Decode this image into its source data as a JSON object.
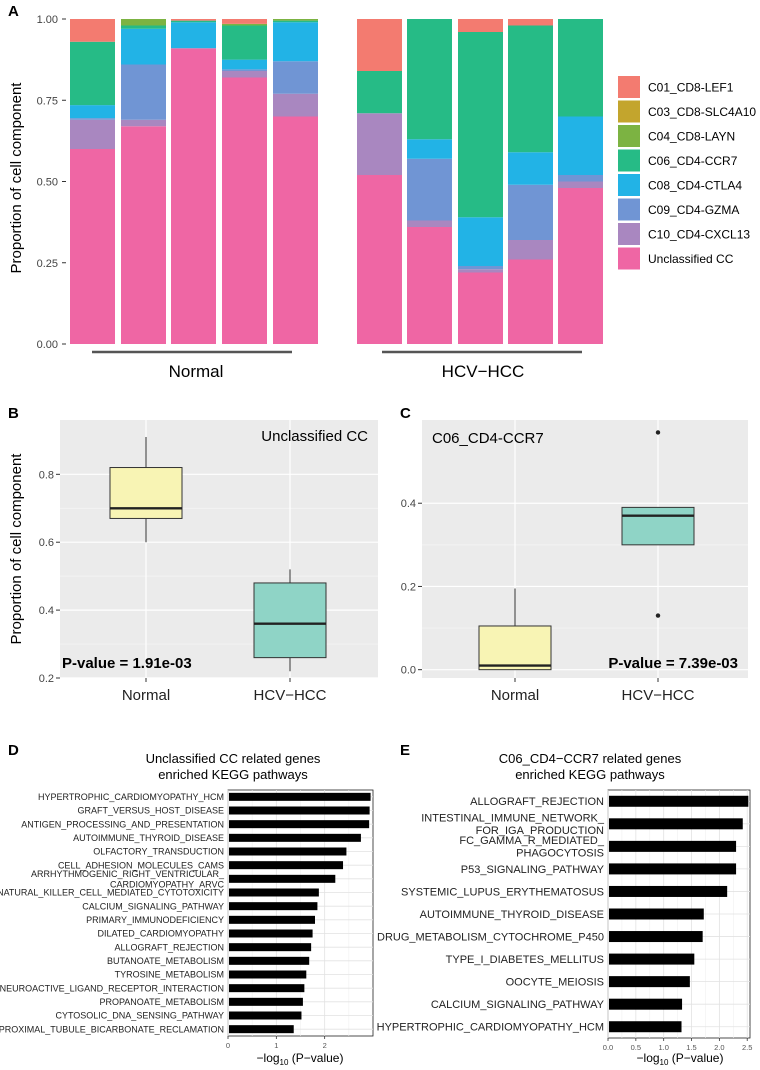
{
  "colors": {
    "C01_CD8-LEF1": "#F37B70",
    "C03_CD8-SLC4A10": "#C3A52D",
    "C04_CD8-LAYN": "#7CB342",
    "C06_CD4-CCR7": "#26BB86",
    "C08_CD4-CTLA4": "#22B3E6",
    "C09_CD4-GZMA": "#7095D4",
    "C10_CD4-CXCL13": "#A987C0",
    "Unclassified CC": "#EF66A4",
    "box_normal": "#F8F4B4",
    "box_hcc": "#8FD4C6",
    "panel_bg": "#EBEBEB"
  },
  "panel_labels": {
    "a": "A",
    "b": "B",
    "c": "C",
    "d": "D",
    "e": "E"
  },
  "chart_data": [
    {
      "id": "panel_a",
      "type": "bar",
      "stacked": true,
      "ylabel": "Proportion of cell component",
      "ylim": [
        0,
        1
      ],
      "yticks": [
        "0.00",
        "0.25",
        "0.50",
        "0.75",
        "1.00"
      ],
      "groups": [
        {
          "label": "Normal",
          "n": 5
        },
        {
          "label": "HCV−HCC",
          "n": 5
        }
      ],
      "legend_order": [
        "C01_CD8-LEF1",
        "C03_CD8-SLC4A10",
        "C04_CD8-LAYN",
        "C06_CD4-CCR7",
        "C08_CD4-CTLA4",
        "C09_CD4-GZMA",
        "C10_CD4-CXCL13",
        "Unclassified CC"
      ],
      "stack_order": [
        "Unclassified CC",
        "C10_CD4-CXCL13",
        "C09_CD4-GZMA",
        "C08_CD4-CTLA4",
        "C06_CD4-CCR7",
        "C04_CD8-LAYN",
        "C03_CD8-SLC4A10",
        "C01_CD8-LEF1"
      ],
      "bars": [
        {
          "group": "Normal",
          "values": {
            "Unclassified CC": 0.6,
            "C10_CD4-CXCL13": 0.09,
            "C09_CD4-GZMA": 0.005,
            "C08_CD4-CTLA4": 0.04,
            "C06_CD4-CCR7": 0.195,
            "C04_CD8-LAYN": 0,
            "C03_CD8-SLC4A10": 0,
            "C01_CD8-LEF1": 0.07
          }
        },
        {
          "group": "Normal",
          "values": {
            "Unclassified CC": 0.67,
            "C10_CD4-CXCL13": 0.02,
            "C09_CD4-GZMA": 0.17,
            "C08_CD4-CTLA4": 0.11,
            "C06_CD4-CCR7": 0.01,
            "C04_CD8-LAYN": 0.02,
            "C03_CD8-SLC4A10": 0,
            "C01_CD8-LEF1": 0
          }
        },
        {
          "group": "Normal",
          "values": {
            "Unclassified CC": 0.91,
            "C10_CD4-CXCL13": 0,
            "C09_CD4-GZMA": 0,
            "C08_CD4-CTLA4": 0.08,
            "C06_CD4-CCR7": 0.005,
            "C04_CD8-LAYN": 0,
            "C03_CD8-SLC4A10": 0,
            "C01_CD8-LEF1": 0.005
          }
        },
        {
          "group": "Normal",
          "values": {
            "Unclassified CC": 0.82,
            "C10_CD4-CXCL13": 0.02,
            "C09_CD4-GZMA": 0.005,
            "C08_CD4-CTLA4": 0.03,
            "C06_CD4-CCR7": 0.105,
            "C04_CD8-LAYN": 0.005,
            "C03_CD8-SLC4A10": 0,
            "C01_CD8-LEF1": 0.015
          }
        },
        {
          "group": "Normal",
          "values": {
            "Unclassified CC": 0.7,
            "C10_CD4-CXCL13": 0.07,
            "C09_CD4-GZMA": 0.1,
            "C08_CD4-CTLA4": 0.12,
            "C06_CD4-CCR7": 0.005,
            "C04_CD8-LAYN": 0.005,
            "C03_CD8-SLC4A10": 0,
            "C01_CD8-LEF1": 0
          }
        },
        {
          "group": "HCV−HCC",
          "values": {
            "Unclassified CC": 0.52,
            "C10_CD4-CXCL13": 0.19,
            "C09_CD4-GZMA": 0,
            "C08_CD4-CTLA4": 0,
            "C06_CD4-CCR7": 0.13,
            "C04_CD8-LAYN": 0,
            "C03_CD8-SLC4A10": 0,
            "C01_CD8-LEF1": 0.16
          }
        },
        {
          "group": "HCV−HCC",
          "values": {
            "Unclassified CC": 0.36,
            "C10_CD4-CXCL13": 0.02,
            "C09_CD4-GZMA": 0.19,
            "C08_CD4-CTLA4": 0.06,
            "C06_CD4-CCR7": 0.37,
            "C04_CD8-LAYN": 0,
            "C03_CD8-SLC4A10": 0,
            "C01_CD8-LEF1": 0
          }
        },
        {
          "group": "HCV−HCC",
          "values": {
            "Unclassified CC": 0.22,
            "C10_CD4-CXCL13": 0.01,
            "C09_CD4-GZMA": 0.01,
            "C08_CD4-CTLA4": 0.15,
            "C06_CD4-CCR7": 0.57,
            "C04_CD8-LAYN": 0,
            "C03_CD8-SLC4A10": 0,
            "C01_CD8-LEF1": 0.04
          }
        },
        {
          "group": "HCV−HCC",
          "values": {
            "Unclassified CC": 0.26,
            "C10_CD4-CXCL13": 0.06,
            "C09_CD4-GZMA": 0.17,
            "C08_CD4-CTLA4": 0.1,
            "C06_CD4-CCR7": 0.39,
            "C04_CD8-LAYN": 0,
            "C03_CD8-SLC4A10": 0,
            "C01_CD8-LEF1": 0.02
          }
        },
        {
          "group": "HCV−HCC",
          "values": {
            "Unclassified CC": 0.48,
            "C10_CD4-CXCL13": 0.02,
            "C09_CD4-GZMA": 0.02,
            "C08_CD4-CTLA4": 0.18,
            "C06_CD4-CCR7": 0.3,
            "C04_CD8-LAYN": 0,
            "C03_CD8-SLC4A10": 0,
            "C01_CD8-LEF1": 0
          }
        }
      ]
    },
    {
      "id": "panel_b",
      "type": "box",
      "title": "Unclassified CC",
      "ylabel": "Proportion of cell component",
      "ylim": [
        0.2,
        0.96
      ],
      "yticks": [
        0.2,
        0.4,
        0.6,
        0.8
      ],
      "categories": [
        "Normal",
        "HCV−HCC"
      ],
      "boxes": [
        {
          "category": "Normal",
          "min": 0.6,
          "q1": 0.67,
          "median": 0.7,
          "q3": 0.82,
          "max": 0.91,
          "outliers": []
        },
        {
          "category": "HCV−HCC",
          "min": 0.22,
          "q1": 0.26,
          "median": 0.36,
          "q3": 0.48,
          "max": 0.52,
          "outliers": []
        }
      ],
      "pvalue": "P-value = 1.91e-03"
    },
    {
      "id": "panel_c",
      "type": "box",
      "title": "C06_CD4-CCR7",
      "ylabel": "",
      "ylim": [
        -0.02,
        0.6
      ],
      "yticks": [
        0.0,
        0.2,
        0.4
      ],
      "categories": [
        "Normal",
        "HCV−HCC"
      ],
      "boxes": [
        {
          "category": "Normal",
          "min": 0.0,
          "q1": 0.0,
          "median": 0.01,
          "q3": 0.105,
          "max": 0.195,
          "outliers": []
        },
        {
          "category": "HCV−HCC",
          "min": 0.3,
          "q1": 0.3,
          "median": 0.37,
          "q3": 0.39,
          "max": 0.39,
          "outliers": [
            0.13,
            0.57
          ]
        }
      ],
      "pvalue": "P-value = 7.39e-03"
    },
    {
      "id": "panel_d",
      "type": "bar",
      "orientation": "horizontal",
      "title_lines": [
        "Unclassified CC related genes",
        "enriched KEGG pathways"
      ],
      "xlim": [
        0,
        3.0
      ],
      "xticks": [
        0,
        1,
        2
      ],
      "categories": [
        [
          "HYPERTROPHIC_CARDIOMYOPATHY_HCM"
        ],
        [
          "GRAFT_VERSUS_HOST_DISEASE"
        ],
        [
          "ANTIGEN_PROCESSING_AND_PRESENTATION"
        ],
        [
          "AUTOIMMUNE_THYROID_DISEASE"
        ],
        [
          "OLFACTORY_TRANSDUCTION"
        ],
        [
          "CELL_ADHESION_MOLECULES_CAMS"
        ],
        [
          "ARRHYTHMOGENIC_RIGHT_VENTRICULAR_",
          "CARDIOMYOPATHY_ARVC"
        ],
        [
          "NATURAL_KILLER_CELL_MEDIATED_CYTOTOXICITY"
        ],
        [
          "CALCIUM_SIGNALING_PATHWAY"
        ],
        [
          "PRIMARY_IMMUNODEFICIENCY"
        ],
        [
          "DILATED_CARDIOMYOPATHY"
        ],
        [
          "ALLOGRAFT_REJECTION"
        ],
        [
          "BUTANOATE_METABOLISM"
        ],
        [
          "TYROSINE_METABOLISM"
        ],
        [
          "NEUROACTIVE_LIGAND_RECEPTOR_INTERACTION"
        ],
        [
          "PROPANOATE_METABOLISM"
        ],
        [
          "CYTOSOLIC_DNA_SENSING_PATHWAY"
        ],
        [
          "PROXIMAL_TUBULE_BICARBONATE_RECLAMATION"
        ]
      ],
      "values": [
        2.95,
        2.93,
        2.92,
        2.75,
        2.45,
        2.38,
        2.22,
        1.88,
        1.85,
        1.8,
        1.75,
        1.72,
        1.68,
        1.62,
        1.58,
        1.55,
        1.52,
        1.36
      ],
      "xlabel_main": "−log",
      "xlabel_sub": "10",
      "xlabel_tail": " (P−value)"
    },
    {
      "id": "panel_e",
      "type": "bar",
      "orientation": "horizontal",
      "title_lines": [
        "C06_CD4−CCR7 related genes",
        "enriched KEGG pathways"
      ],
      "xlim": [
        0,
        2.55
      ],
      "xticks": [
        "0.0",
        "0.5",
        "1.0",
        "1.5",
        "2.0",
        "2.5"
      ],
      "categories": [
        [
          "ALLOGRAFT_REJECTION"
        ],
        [
          "INTESTINAL_IMMUNE_NETWORK_",
          "FOR_IGA_PRODUCTION"
        ],
        [
          "FC_GAMMA_R_MEDIATED_",
          "PHAGOCYTOSIS"
        ],
        [
          "P53_SIGNALING_PATHWAY"
        ],
        [
          "SYSTEMIC_LUPUS_ERYTHEMATOSUS"
        ],
        [
          "AUTOIMMUNE_THYROID_DISEASE"
        ],
        [
          "DRUG_METABOLISM_CYTOCHROME_P450"
        ],
        [
          "TYPE_I_DIABETES_MELLITUS"
        ],
        [
          "OOCYTE_MEIOSIS"
        ],
        [
          "CALCIUM_SIGNALING_PATHWAY"
        ],
        [
          "HYPERTROPHIC_CARDIOMYOPATHY_HCM"
        ]
      ],
      "values": [
        2.52,
        2.42,
        2.3,
        2.3,
        2.14,
        1.72,
        1.7,
        1.55,
        1.47,
        1.33,
        1.32
      ],
      "xlabel_main": "−log",
      "xlabel_sub": "10",
      "xlabel_tail": " (P−value)"
    }
  ]
}
